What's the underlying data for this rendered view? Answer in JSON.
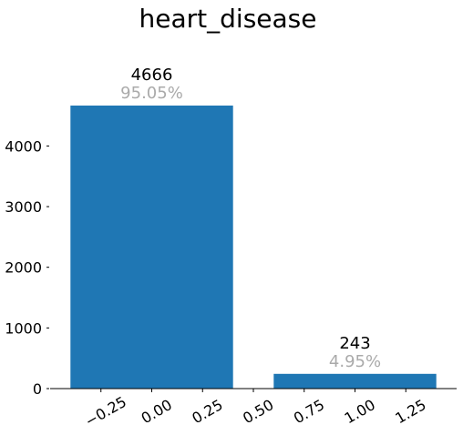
{
  "chart_data": {
    "type": "bar",
    "title": "heart_disease",
    "xlabel": "",
    "ylabel": "",
    "x": [
      0,
      1
    ],
    "bar_width": 0.8,
    "values": [
      4666,
      243
    ],
    "count_labels": [
      "4666",
      "243"
    ],
    "percent_labels": [
      "95.05%",
      "4.95%"
    ],
    "xlim": [
      -0.5,
      1.5
    ],
    "ylim": [
      0,
      4666
    ],
    "xticks": [
      -0.25,
      0.0,
      0.25,
      0.5,
      0.75,
      1.0,
      1.25
    ],
    "xtick_labels": [
      "−0.25",
      "0.00",
      "0.25",
      "0.50",
      "0.75",
      "1.00",
      "1.25"
    ],
    "yticks": [
      0,
      1000,
      2000,
      3000,
      4000
    ],
    "ytick_labels": [
      "0",
      "1000",
      "2000",
      "3000",
      "4000"
    ],
    "grid": false,
    "bar_color": "#1f77b4",
    "percent_color": "#aaaaaa",
    "text_color": "#000000"
  }
}
